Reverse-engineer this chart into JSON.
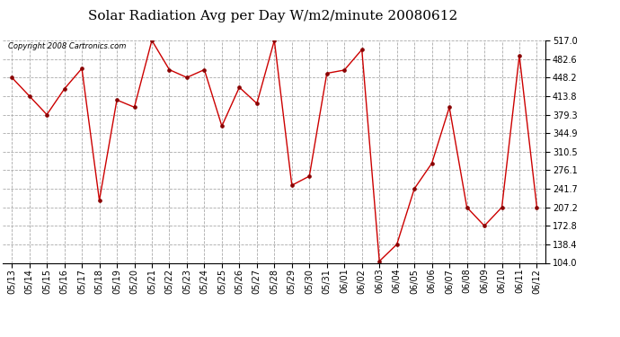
{
  "title": "Solar Radiation Avg per Day W/m2/minute 20080612",
  "copyright": "Copyright 2008 Cartronics.com",
  "labels": [
    "05/13",
    "05/14",
    "05/15",
    "05/16",
    "05/17",
    "05/18",
    "05/19",
    "05/20",
    "05/21",
    "05/22",
    "05/23",
    "05/24",
    "05/25",
    "05/26",
    "05/27",
    "05/28",
    "05/29",
    "05/30",
    "05/31",
    "06/01",
    "06/02",
    "06/03",
    "06/04",
    "06/05",
    "06/06",
    "06/07",
    "06/08",
    "06/09",
    "06/10",
    "06/11",
    "06/12"
  ],
  "values": [
    448.2,
    413.8,
    379.3,
    427.0,
    465.0,
    220.0,
    406.5,
    393.0,
    517.0,
    462.7,
    448.2,
    462.7,
    358.0,
    430.0,
    400.0,
    517.0,
    248.0,
    265.0,
    456.0,
    462.0,
    500.0,
    107.0,
    138.4,
    241.7,
    289.0,
    393.0,
    207.2,
    172.8,
    207.2,
    489.0,
    207.2
  ],
  "line_color": "#cc0000",
  "marker": "o",
  "marker_color": "#880000",
  "bg_color": "#ffffff",
  "plot_bg_color": "#ffffff",
  "grid_color": "#aaaaaa",
  "grid_style": "--",
  "yticks": [
    104.0,
    138.4,
    172.8,
    207.2,
    241.7,
    276.1,
    310.5,
    344.9,
    379.3,
    413.8,
    448.2,
    482.6,
    517.0
  ],
  "ymin": 104.0,
  "ymax": 517.0,
  "title_fontsize": 11,
  "copyright_fontsize": 6,
  "tick_fontsize": 7,
  "ylabel_fontsize": 7
}
